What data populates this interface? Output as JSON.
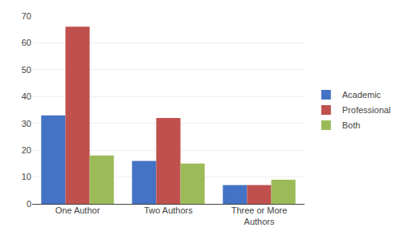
{
  "chart_data": {
    "type": "bar",
    "categories": [
      "One Author",
      "Two Authors",
      "Three or More\nAuthors"
    ],
    "series": [
      {
        "name": "Academic",
        "color": "#4472C4",
        "values": [
          33,
          16,
          7
        ]
      },
      {
        "name": "Professional",
        "color": "#C0504D",
        "values": [
          66,
          32,
          7
        ]
      },
      {
        "name": "Both",
        "color": "#9BBB59",
        "values": [
          18,
          15,
          9
        ]
      }
    ],
    "ylim": [
      0,
      70
    ],
    "yticks": [
      0,
      10,
      20,
      30,
      40,
      50,
      60,
      70
    ],
    "grid": true,
    "legend": "right"
  }
}
